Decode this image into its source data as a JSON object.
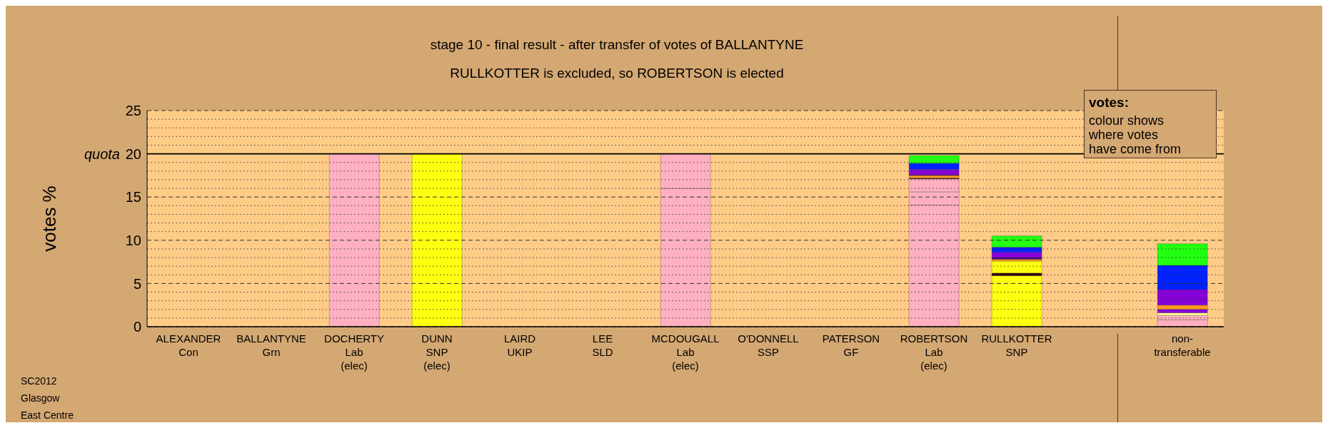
{
  "chart_data": {
    "type": "bar",
    "stacked": true,
    "title": "stage 10 - final result - after transfer of votes of BALLANTYNE",
    "subtitle": "RULLKOTTER is excluded, so ROBERTSON is elected",
    "ylabel": "votes %",
    "categories": [
      "ALEXANDER\nCon",
      "BALLANTYNE\nGrn",
      "DOCHERTY\nLab\n(elec)",
      "DUNN\nSNP\n(elec)",
      "LAIRD\nUKIP",
      "LEE\nSLD",
      "MCDOUGALL\nLab\n(elec)",
      "O'DONNELL\nSSP",
      "PATERSON\nGF",
      "ROBERTSON\nLab\n(elec)",
      "RULLKOTTER\nSNP",
      null,
      "non-\ntransferable"
    ],
    "series": [
      {
        "color": "#ffb0c0",
        "values": [
          null,
          null,
          20,
          null,
          null,
          null,
          16,
          null,
          null,
          14.1,
          null,
          null,
          0.8
        ]
      },
      {
        "color": "#ffff11",
        "values": [
          null,
          null,
          null,
          20,
          null,
          null,
          null,
          null,
          null,
          null,
          5.9,
          null,
          null
        ]
      },
      {
        "color": "#ffb0c0",
        "values": [
          null,
          null,
          null,
          null,
          null,
          null,
          4,
          null,
          null,
          1.5,
          null,
          null,
          0.5
        ]
      },
      {
        "color": "#ffb0c0",
        "values": [
          null,
          null,
          null,
          null,
          null,
          null,
          null,
          null,
          null,
          1.5,
          null,
          null,
          null
        ]
      },
      {
        "color": "#330000",
        "values": [
          null,
          null,
          null,
          null,
          null,
          null,
          null,
          null,
          null,
          0.1,
          0.3,
          null,
          null
        ]
      },
      {
        "color": "#ffff11",
        "values": [
          null,
          null,
          null,
          null,
          null,
          null,
          null,
          null,
          null,
          null,
          1.4,
          null,
          null
        ]
      },
      {
        "color": "#ffff99",
        "values": [
          null,
          null,
          null,
          null,
          null,
          null,
          null,
          null,
          null,
          null,
          null,
          null,
          0.3
        ]
      },
      {
        "color": "#8800dd",
        "values": [
          null,
          null,
          null,
          null,
          null,
          null,
          null,
          null,
          null,
          null,
          null,
          null,
          0.4
        ]
      },
      {
        "color": "#ff9922",
        "values": [
          null,
          null,
          null,
          null,
          null,
          null,
          null,
          null,
          null,
          0.3,
          0.2,
          null,
          0.5
        ]
      },
      {
        "color": "#550088",
        "values": [
          null,
          null,
          null,
          null,
          null,
          null,
          null,
          null,
          null,
          0.1,
          0.2,
          null,
          null
        ]
      },
      {
        "color": "#8800dd",
        "values": [
          null,
          null,
          null,
          null,
          null,
          null,
          null,
          null,
          null,
          0.6,
          0.6,
          null,
          0.8
        ]
      },
      {
        "color": "#8800dd",
        "values": [
          null,
          null,
          null,
          null,
          null,
          null,
          null,
          null,
          null,
          null,
          null,
          null,
          1
        ]
      },
      {
        "color": "#0022ff",
        "values": [
          null,
          null,
          null,
          null,
          null,
          null,
          null,
          null,
          null,
          0.7,
          0.6,
          null,
          2.8
        ]
      },
      {
        "color": "#22ff11",
        "values": [
          null,
          null,
          null,
          null,
          null,
          null,
          null,
          null,
          null,
          0.9,
          1.3,
          null,
          2.5
        ]
      }
    ],
    "ylim": [
      0,
      25
    ],
    "yticks": [
      0,
      {
        "value": 1,
        "label": null
      },
      {
        "value": 2,
        "label": null
      },
      {
        "value": 3,
        "label": null
      },
      {
        "value": 4,
        "label": null
      },
      5,
      {
        "value": 6,
        "label": null
      },
      {
        "value": 7,
        "label": null
      },
      {
        "value": 8,
        "label": null
      },
      {
        "value": 9,
        "label": null
      },
      10,
      {
        "value": 11,
        "label": null
      },
      {
        "value": 12,
        "label": null
      },
      {
        "value": 13,
        "label": null
      },
      {
        "value": 14,
        "label": null
      },
      15,
      {
        "value": 16,
        "label": null
      },
      {
        "value": 17,
        "label": null
      },
      {
        "value": 18,
        "label": null
      },
      {
        "value": 19,
        "label": null
      },
      20,
      {
        "value": 21,
        "label": null
      },
      {
        "value": 22,
        "label": null
      },
      {
        "value": 23,
        "label": null
      },
      {
        "value": 24,
        "label": null
      },
      25
    ],
    "grid": "y",
    "ref_lines": [
      {
        "axis": "y",
        "value": 20,
        "label": "quota",
        "color": "#000000",
        "line_style": "solid"
      }
    ],
    "annotations": [
      "votes:",
      "colour shows\nwhere votes\nhave come from",
      "SC2012\nGlasgow\nEast Centre"
    ]
  }
}
